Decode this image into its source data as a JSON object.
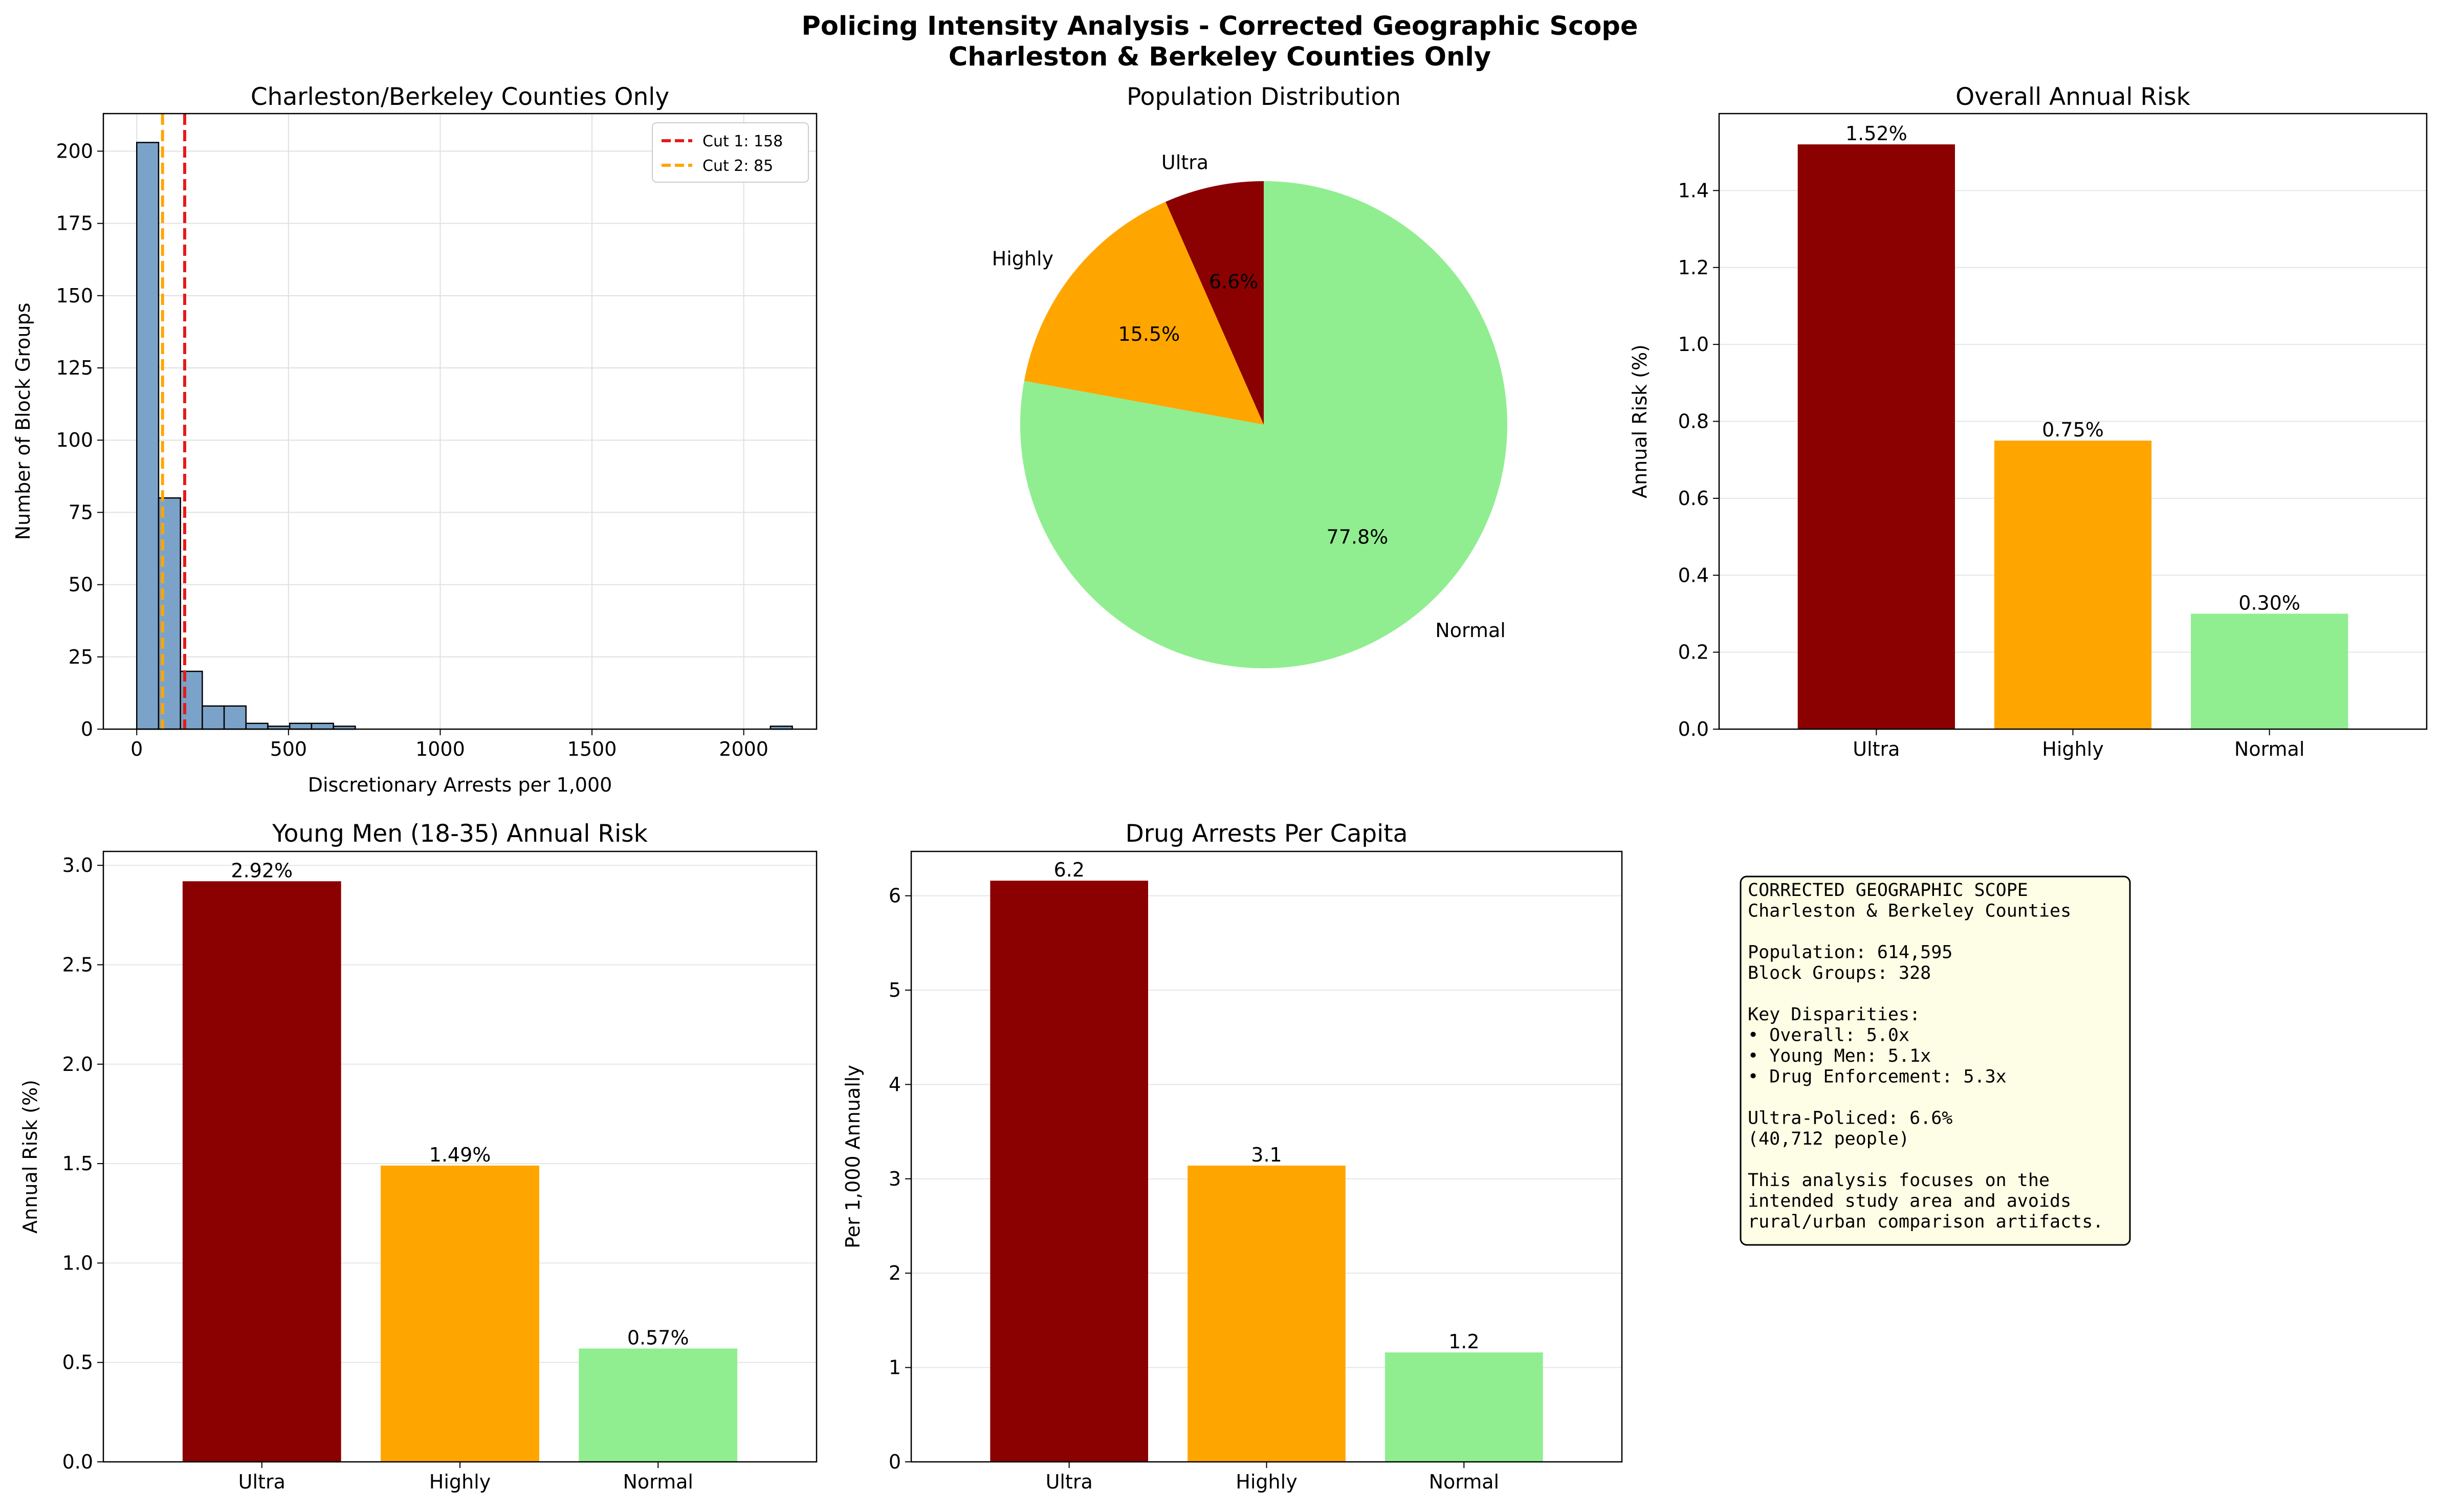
{
  "suptitle": [
    "Policing Intensity Analysis - Corrected Geographic Scope",
    "Charleston & Berkeley Counties Only"
  ],
  "colors": {
    "ultra": "#8b0000",
    "highly": "#ffa500",
    "normal": "#90ee90",
    "hist": "#7ba3c9",
    "cut1": "#e41a1c",
    "cut2": "#ffa500",
    "box_bg": "#fefee6"
  },
  "chart_data": [
    {
      "id": "hist",
      "type": "histogram",
      "title": "Charleston/Berkeley Counties Only",
      "xlabel": "Discretionary Arrests per 1,000",
      "ylabel": "Number of Block Groups",
      "xlim": [
        -110,
        2240
      ],
      "ylim": [
        0,
        213
      ],
      "xticks": [
        0,
        500,
        1000,
        1500,
        2000
      ],
      "yticks": [
        0,
        25,
        50,
        75,
        100,
        125,
        150,
        175,
        200
      ],
      "grid": true,
      "legend_position": "top-right",
      "bins": [
        {
          "x0": 0,
          "x1": 72,
          "count": 203
        },
        {
          "x0": 72,
          "x1": 144,
          "count": 80
        },
        {
          "x0": 144,
          "x1": 216,
          "count": 20
        },
        {
          "x0": 216,
          "x1": 288,
          "count": 8
        },
        {
          "x0": 288,
          "x1": 360,
          "count": 8
        },
        {
          "x0": 360,
          "x1": 432,
          "count": 2
        },
        {
          "x0": 432,
          "x1": 504,
          "count": 1
        },
        {
          "x0": 504,
          "x1": 576,
          "count": 2
        },
        {
          "x0": 576,
          "x1": 648,
          "count": 2
        },
        {
          "x0": 648,
          "x1": 720,
          "count": 1
        },
        {
          "x0": 2088,
          "x1": 2160,
          "count": 1
        }
      ],
      "cutlines": [
        {
          "label": "Cut 1: 158",
          "value": 158,
          "color": "#e41a1c"
        },
        {
          "label": "Cut 2: 85",
          "value": 85,
          "color": "#ffa500"
        }
      ]
    },
    {
      "id": "pie",
      "type": "pie",
      "title": "Population Distribution",
      "slices": [
        {
          "label": "Ultra",
          "value": 6.6,
          "pct_label": "6.6%",
          "color": "#8b0000"
        },
        {
          "label": "Highly",
          "value": 15.5,
          "pct_label": "15.5%",
          "color": "#ffa500"
        },
        {
          "label": "Normal",
          "value": 77.8,
          "pct_label": "77.8%",
          "color": "#90ee90"
        }
      ],
      "start_angle": 90,
      "direction": "counterclockwise"
    },
    {
      "id": "overall",
      "type": "bar",
      "title": "Overall Annual Risk",
      "ylabel": "Annual Risk (%)",
      "categories": [
        "Ultra",
        "Highly",
        "Normal"
      ],
      "values": [
        1.52,
        0.75,
        0.3
      ],
      "value_labels": [
        "1.52%",
        "0.75%",
        "0.30%"
      ],
      "ylim": [
        0,
        1.6
      ],
      "yticks": [
        0.0,
        0.2,
        0.4,
        0.6,
        0.8,
        1.0,
        1.2,
        1.4
      ],
      "ytick_labels": [
        "0.0",
        "0.2",
        "0.4",
        "0.6",
        "0.8",
        "1.0",
        "1.2",
        "1.4"
      ],
      "grid": true
    },
    {
      "id": "young",
      "type": "bar",
      "title": "Young Men (18-35) Annual Risk",
      "ylabel": "Annual Risk (%)",
      "categories": [
        "Ultra",
        "Highly",
        "Normal"
      ],
      "values": [
        2.92,
        1.49,
        0.57
      ],
      "value_labels": [
        "2.92%",
        "1.49%",
        "0.57%"
      ],
      "ylim": [
        0,
        3.07
      ],
      "yticks": [
        0.0,
        0.5,
        1.0,
        1.5,
        2.0,
        2.5,
        3.0
      ],
      "ytick_labels": [
        "0.0",
        "0.5",
        "1.0",
        "1.5",
        "2.0",
        "2.5",
        "3.0"
      ],
      "grid": true
    },
    {
      "id": "drug",
      "type": "bar",
      "title": "Drug Arrests Per Capita",
      "ylabel": "Per 1,000 Annually",
      "categories": [
        "Ultra",
        "Highly",
        "Normal"
      ],
      "values": [
        6.16,
        3.14,
        1.16
      ],
      "value_labels": [
        "6.2",
        "3.1",
        "1.2"
      ],
      "ylim": [
        0,
        6.47
      ],
      "yticks": [
        0,
        1,
        2,
        3,
        4,
        5,
        6
      ],
      "ytick_labels": [
        "0",
        "1",
        "2",
        "3",
        "4",
        "5",
        "6"
      ],
      "grid": true
    }
  ],
  "summary_box": {
    "lines": [
      "CORRECTED GEOGRAPHIC SCOPE",
      "Charleston & Berkeley Counties",
      "",
      "Population: 614,595",
      "Block Groups: 328",
      "",
      "Key Disparities:",
      "• Overall: 5.0x",
      "• Young Men: 5.1x",
      "• Drug Enforcement: 5.3x",
      "",
      "Ultra-Policed: 6.6%",
      "(40,712 people)",
      "",
      "This analysis focuses on the",
      "intended study area and avoids",
      "rural/urban comparison artifacts."
    ]
  }
}
